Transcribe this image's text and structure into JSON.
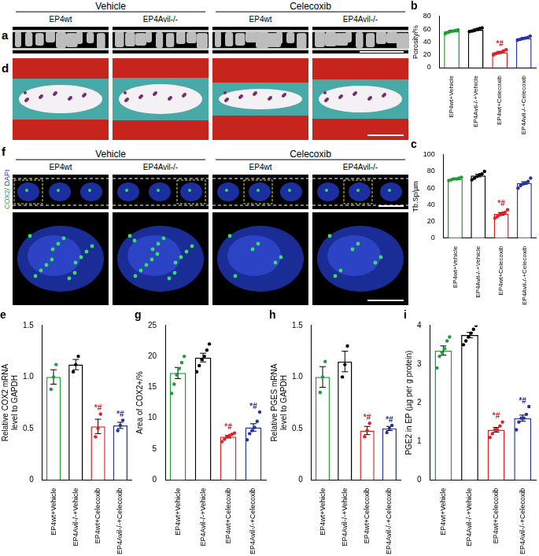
{
  "figure_panels": [
    {
      "label": "a",
      "groups": [
        "Vehicle",
        "Celecoxib"
      ],
      "columns": [
        "EP4wt",
        "EP4Avil-/-",
        "EP4wt",
        "EP4Avil-/-"
      ]
    },
    {
      "label": "d"
    },
    {
      "label": "f",
      "groups": [
        "Vehicle",
        "Celecoxib"
      ],
      "columns": [
        "EP4wt",
        "EP4Avil-/-",
        "EP4wt",
        "EP4Avil-/-"
      ],
      "stain": "COX2/ DAPI"
    }
  ],
  "chart_data": [
    {
      "type": "bar",
      "title": "b",
      "y_label": "Porosity/%",
      "categories": [
        "EP4wt+Vehicle",
        "EP4Avil-/-+Vehicle",
        "EP4wt+Celecoxib",
        "EP4Avil-/-+Celecoxib"
      ],
      "values": [
        57,
        59,
        24,
        46
      ],
      "errors": [
        1.2,
        1.3,
        1.4,
        1.0
      ],
      "points": [
        [
          53,
          55,
          56,
          57,
          58,
          59
        ],
        [
          56,
          57,
          58,
          60,
          61,
          62
        ],
        [
          20,
          22,
          23,
          24,
          26,
          28
        ],
        [
          43,
          44,
          45,
          46,
          47,
          49
        ]
      ],
      "annotations": [
        null,
        null,
        "*#",
        null
      ],
      "colors": [
        "#1e9c3a",
        "#000000",
        "#e41f26",
        "#2732a8"
      ],
      "ylim": [
        0,
        80
      ],
      "yticks": [
        0,
        20,
        40,
        60,
        80
      ],
      "grid": false
    },
    {
      "type": "bar",
      "title": "c",
      "y_label": "Tb.Sp/µm",
      "categories": [
        "EP4wt+Vehicle",
        "EP4Avil-/-+Vehicle",
        "EP4wt+Celecoxib",
        "EP4Avil-/-+Celecoxib"
      ],
      "values": [
        71,
        75,
        29,
        66
      ],
      "errors": [
        0.8,
        1.6,
        1.5,
        1.7
      ],
      "points": [
        [
          69,
          70,
          71,
          71,
          72,
          73
        ],
        [
          70,
          72,
          74,
          76,
          77,
          80
        ],
        [
          24,
          26,
          28,
          30,
          31,
          34
        ],
        [
          60,
          63,
          65,
          66,
          68,
          72
        ]
      ],
      "annotations": [
        null,
        null,
        "*#",
        null
      ],
      "colors": [
        "#1e9c3a",
        "#000000",
        "#e41f26",
        "#2732a8"
      ],
      "ylim": [
        0,
        100
      ],
      "yticks": [
        0,
        20,
        40,
        60,
        80,
        100
      ],
      "grid": false
    },
    {
      "type": "bar",
      "title": "e",
      "y_label": [
        "Relative COX2 mRNA",
        "level to GAPDH"
      ],
      "categories": [
        "EP4wt+Vehicle",
        "EP4Avil-/-+Vehicle",
        "EP4wt+Celecoxib",
        "EP4Avil-/-+Celecoxib"
      ],
      "values": [
        1.0,
        1.12,
        0.52,
        0.53
      ],
      "errors": [
        0.07,
        0.05,
        0.07,
        0.03
      ],
      "points": [
        [
          0.88,
          1.0,
          1.12
        ],
        [
          1.05,
          1.12,
          1.2
        ],
        [
          0.42,
          0.5,
          0.64
        ],
        [
          0.48,
          0.53,
          0.58
        ]
      ],
      "annotations": [
        null,
        null,
        "*#",
        "*#"
      ],
      "colors": [
        "#1e9c3a",
        "#000000",
        "#e41f26",
        "#2732a8"
      ],
      "ylim": [
        0,
        1.5
      ],
      "yticks": [
        0,
        0.5,
        {
          "value": 1,
          "label": "1.0"
        },
        1.5
      ],
      "grid": false
    },
    {
      "type": "bar",
      "title": "g",
      "y_label": "Area of COX2+/%",
      "categories": [
        "EP4wt+Vehicle",
        "EP4Avil-/-+Vehicle",
        "EP4wt+Celecoxib",
        "EP4Avil-/-+Celecoxib"
      ],
      "values": [
        17.3,
        19.8,
        7.0,
        8.5
      ],
      "errors": [
        0.9,
        0.7,
        0.2,
        0.6
      ],
      "points": [
        [
          14,
          15.5,
          17,
          18,
          19,
          20
        ],
        [
          17.5,
          18.5,
          19.5,
          20,
          21,
          22
        ],
        [
          6.2,
          6.6,
          7,
          7.2,
          7.4,
          7.6
        ],
        [
          6.5,
          7.5,
          8,
          8.5,
          9.5,
          11
        ]
      ],
      "annotations": [
        null,
        null,
        "*#",
        "*#"
      ],
      "colors": [
        "#1e9c3a",
        "#000000",
        "#e41f26",
        "#2732a8"
      ],
      "ylim": [
        0,
        25
      ],
      "yticks": [
        0,
        5,
        10,
        15,
        20,
        25
      ],
      "grid": false
    },
    {
      "type": "bar",
      "title": "h",
      "y_label": [
        "Relative PGES mRNA",
        "level to GAPDH"
      ],
      "categories": [
        "EP4wt+Vehicle",
        "EP4Avil-/-+Vehicle",
        "EP4wt+Celecoxib",
        "EP4Avil-/-+Celecoxib"
      ],
      "values": [
        1.0,
        1.15,
        0.48,
        0.5
      ],
      "errors": [
        0.1,
        0.1,
        0.04,
        0.02
      ],
      "points": [
        [
          0.85,
          1.0,
          1.15
        ],
        [
          1.0,
          1.12,
          1.3
        ],
        [
          0.42,
          0.48,
          0.55
        ],
        [
          0.46,
          0.5,
          0.53
        ]
      ],
      "annotations": [
        null,
        null,
        "*#",
        "*#"
      ],
      "colors": [
        "#1e9c3a",
        "#000000",
        "#e41f26",
        "#2732a8"
      ],
      "ylim": [
        0,
        1.5
      ],
      "yticks": [
        0,
        0.5,
        {
          "value": 1,
          "label": "1.0"
        },
        1.5
      ],
      "grid": false
    },
    {
      "type": "bar",
      "title": "i",
      "y_label": "PGE2 in EP (µg per g protein)",
      "categories": [
        "EP4wt+Vehicle",
        "EP4Avil-/-+Vehicle",
        "EP4wt+Celecoxib",
        "EP4Avil-/-+Celecoxib"
      ],
      "values": [
        3.35,
        3.75,
        1.3,
        1.6
      ],
      "errors": [
        0.12,
        0.07,
        0.06,
        0.08
      ],
      "points": [
        [
          2.9,
          3.2,
          3.3,
          3.4,
          3.6,
          3.7
        ],
        [
          3.5,
          3.6,
          3.7,
          3.8,
          3.9,
          4.0
        ],
        [
          1.1,
          1.2,
          1.3,
          1.3,
          1.4,
          1.5
        ],
        [
          1.3,
          1.5,
          1.6,
          1.6,
          1.7,
          1.9
        ]
      ],
      "annotations": [
        null,
        null,
        "*#",
        "*#"
      ],
      "colors": [
        "#1e9c3a",
        "#000000",
        "#e41f26",
        "#2732a8"
      ],
      "ylim": [
        0,
        4
      ],
      "yticks": [
        0,
        1,
        2,
        3,
        4
      ],
      "grid": false
    }
  ]
}
